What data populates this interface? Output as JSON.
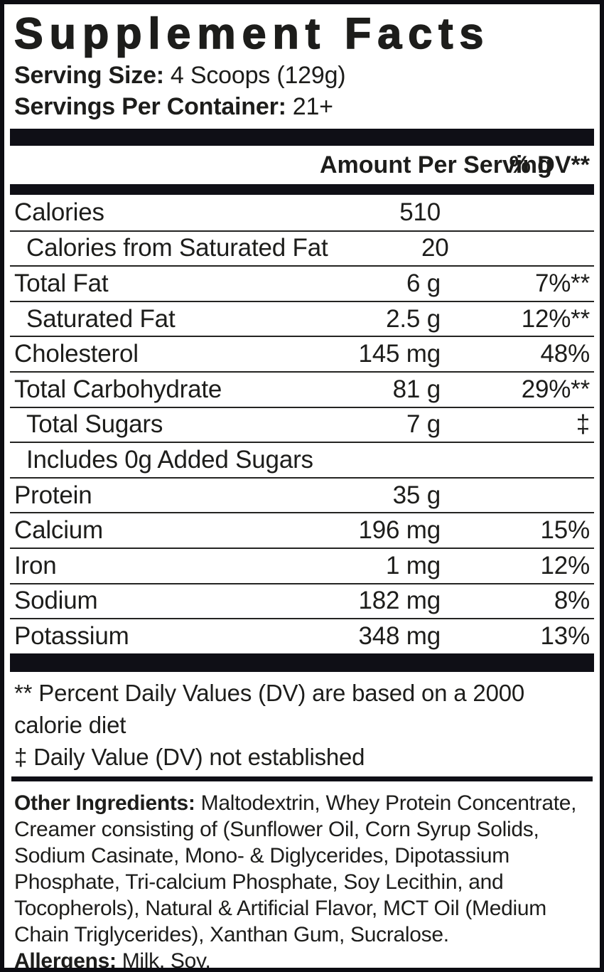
{
  "label": {
    "title": "Supplement Facts",
    "serving": {
      "size_label": "Serving Size:",
      "size_value": "4 Scoops (129g)",
      "per_container_label": "Servings Per Container:",
      "per_container_value": "21+"
    },
    "table": {
      "header": {
        "amount": "Amount Per Serving",
        "dv": "% DV**"
      },
      "rows": [
        {
          "name": "Calories",
          "amount": "510",
          "dv": "",
          "indent": false
        },
        {
          "name": "Calories from Saturated Fat",
          "amount": "20",
          "dv": "",
          "indent": true
        },
        {
          "name": "Total Fat",
          "amount": "6 g",
          "dv": "7%**",
          "indent": false
        },
        {
          "name": "Saturated Fat",
          "amount": "2.5 g",
          "dv": "12%**",
          "indent": true
        },
        {
          "name": "Cholesterol",
          "amount": "145 mg",
          "dv": "48%",
          "indent": false
        },
        {
          "name": "Total Carbohydrate",
          "amount": "81 g",
          "dv": "29%**",
          "indent": false
        },
        {
          "name": "Total Sugars",
          "amount": "7 g",
          "dv": "‡",
          "indent": true
        },
        {
          "name": "Includes 0g Added Sugars",
          "amount": "",
          "dv": "",
          "indent": true
        },
        {
          "name": "Protein",
          "amount": "35 g",
          "dv": "",
          "indent": false
        },
        {
          "name": "Calcium",
          "amount": "196 mg",
          "dv": "15%",
          "indent": false
        },
        {
          "name": "Iron",
          "amount": "1 mg",
          "dv": "12%",
          "indent": false
        },
        {
          "name": "Sodium",
          "amount": "182 mg",
          "dv": "8%",
          "indent": false
        },
        {
          "name": "Potassium",
          "amount": "348 mg",
          "dv": "13%",
          "indent": false
        }
      ]
    },
    "footnotes": [
      "** Percent Daily Values (DV) are based on a 2000 calorie diet",
      "‡ Daily Value (DV) not established"
    ],
    "other_ingredients_label": "Other Ingredients:",
    "other_ingredients_text": "Maltodextrin, Whey Protein Concentrate, Creamer consisting of (Sunflower Oil, Corn Syrup Solids, Sodium Casinate, Mono- & Diglycerides, Dipotassium Phosphate, Tri-calcium Phosphate, Soy Lecithin, and Tocopherols), Natural & Artificial Flavor, MCT Oil (Medium Chain Triglycerides), Xanthan Gum, Sucralose.",
    "allergens_label": "Allergens:",
    "allergens_text": "Milk, Soy.",
    "colors": {
      "ink": "#1d1d1b",
      "bar": "#0f0f16",
      "background": "#ffffff"
    }
  }
}
